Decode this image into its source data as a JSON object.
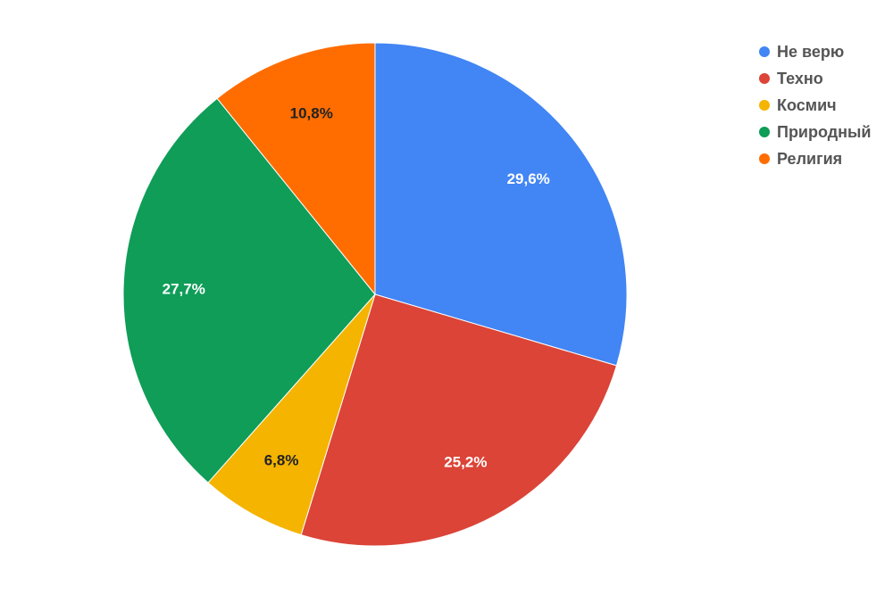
{
  "chart_data": {
    "type": "pie",
    "categories": [
      "Не верю",
      "Техно",
      "Космич",
      "Природный",
      "Религия"
    ],
    "values": [
      29.6,
      25.2,
      6.8,
      27.7,
      10.8
    ],
    "value_labels": [
      "29,6%",
      "25,2%",
      "6,8%",
      "27,7%",
      "10,8%"
    ],
    "colors": [
      "#4285f4",
      "#db4437",
      "#f4b400",
      "#0f9d58",
      "#ff6d01"
    ],
    "legend": "top-right"
  }
}
